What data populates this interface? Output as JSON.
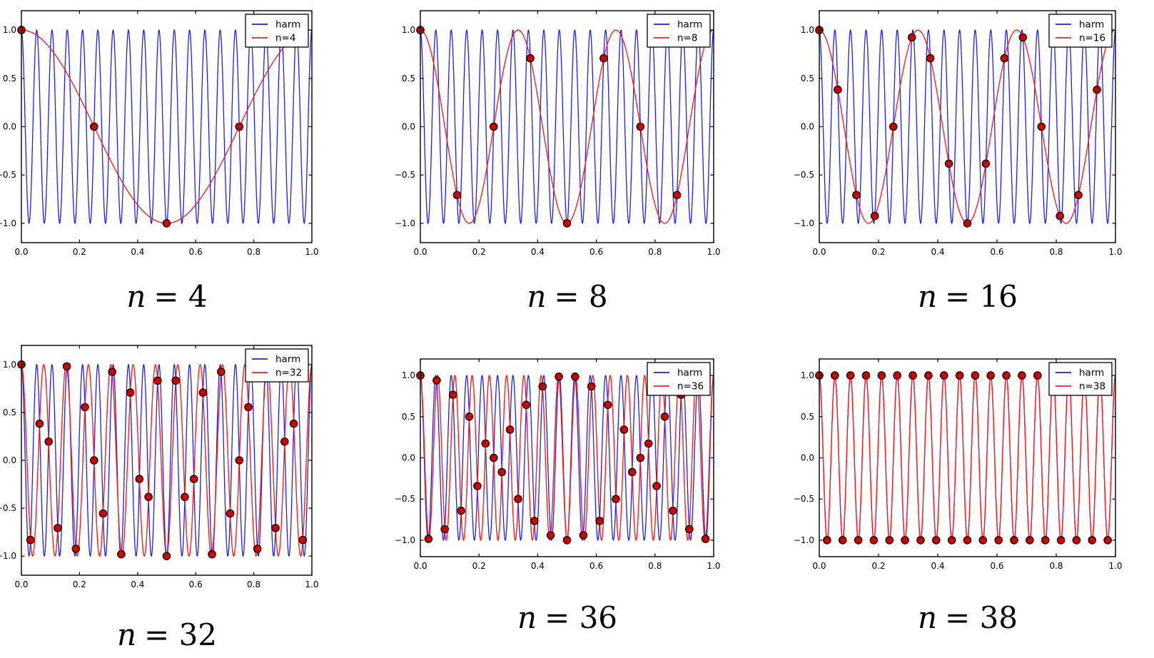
{
  "figure": {
    "background": "#ffffff",
    "colors": {
      "harm": "#2020dd",
      "alias": "#ee2222",
      "dot_fill": "#cc0000",
      "dot_edge": "#000000",
      "axis": "#000000",
      "legend_bg": "#ffffff",
      "text": "#000000"
    }
  },
  "axes": {
    "xlim": [
      0,
      1
    ],
    "ylim": [
      -1.2,
      1.2
    ],
    "grid": false,
    "legend_position": "upper right",
    "x_ticks": {
      "values": [
        0,
        0.2,
        0.4,
        0.6,
        0.8,
        1.0
      ],
      "labels": [
        "0.0",
        "0.2",
        "0.4",
        "0.6",
        "0.8",
        "1.0"
      ]
    },
    "y_ticks": {
      "values": [
        1.0,
        0.5,
        0.0,
        -0.5,
        -1.0
      ],
      "labels": [
        "1.0",
        "0.5",
        "0.0",
        "−0.5",
        "−1.0"
      ]
    },
    "xlabel": "",
    "ylabel": ""
  },
  "chart_data": [
    {
      "type": "line",
      "title": "n = 4",
      "caption": "n = 4",
      "caption_var": "n",
      "caption_eq": "= 4",
      "legend": [
        "harm",
        "n=4"
      ],
      "harm_frequency": 19,
      "alias_frequency": 1,
      "n_samples": 4,
      "samples": [
        [
          0,
          1
        ],
        [
          0.25,
          0
        ],
        [
          0.5,
          -1
        ],
        [
          0.75,
          0
        ]
      ]
    },
    {
      "type": "line",
      "title": "n = 8",
      "caption": "n = 8",
      "caption_var": "n",
      "caption_eq": "= 8",
      "legend": [
        "harm",
        "n=8"
      ],
      "harm_frequency": 19,
      "alias_frequency": 3,
      "n_samples": 8,
      "samples": [
        [
          0,
          1
        ],
        [
          0.125,
          -0.7071
        ],
        [
          0.25,
          0
        ],
        [
          0.375,
          0.7071
        ],
        [
          0.5,
          -1
        ],
        [
          0.625,
          0.7071
        ],
        [
          0.75,
          0
        ],
        [
          0.875,
          -0.7071
        ]
      ]
    },
    {
      "type": "line",
      "title": "n = 16",
      "caption": "n = 16",
      "caption_var": "n",
      "caption_eq": "= 16",
      "legend": [
        "harm",
        "n=16"
      ],
      "harm_frequency": 19,
      "alias_frequency": 3,
      "n_samples": 16,
      "samples": [
        [
          0,
          1
        ],
        [
          0.0625,
          0.3827
        ],
        [
          0.125,
          -0.7071
        ],
        [
          0.1875,
          -0.9239
        ],
        [
          0.25,
          0
        ],
        [
          0.3125,
          0.9239
        ],
        [
          0.375,
          0.7071
        ],
        [
          0.4375,
          -0.3827
        ],
        [
          0.5,
          -1
        ],
        [
          0.5625,
          -0.3827
        ],
        [
          0.625,
          0.7071
        ],
        [
          0.6875,
          0.9239
        ],
        [
          0.75,
          0
        ],
        [
          0.8125,
          -0.9239
        ],
        [
          0.875,
          -0.7071
        ],
        [
          0.9375,
          0.3827
        ]
      ]
    },
    {
      "type": "line",
      "title": "n = 32",
      "caption": "n = 32",
      "caption_var": "n",
      "caption_eq": "= 32",
      "legend": [
        "harm",
        "n=32"
      ],
      "harm_frequency": 19,
      "alias_frequency": 13,
      "n_samples": 32,
      "samples": [
        [
          0,
          1
        ],
        [
          0.03125,
          -0.8315
        ],
        [
          0.0625,
          0.3827
        ],
        [
          0.09375,
          0.1951
        ],
        [
          0.125,
          -0.7071
        ],
        [
          0.15625,
          0.9808
        ],
        [
          0.1875,
          -0.9239
        ],
        [
          0.21875,
          0.5556
        ],
        [
          0.25,
          0
        ],
        [
          0.28125,
          -0.5556
        ],
        [
          0.3125,
          0.9239
        ],
        [
          0.34375,
          -0.9808
        ],
        [
          0.375,
          0.7071
        ],
        [
          0.40625,
          -0.1951
        ],
        [
          0.4375,
          -0.3827
        ],
        [
          0.46875,
          0.8315
        ],
        [
          0.5,
          -1
        ],
        [
          0.53125,
          0.8315
        ],
        [
          0.5625,
          -0.3827
        ],
        [
          0.59375,
          -0.1951
        ],
        [
          0.625,
          0.7071
        ],
        [
          0.65625,
          -0.9808
        ],
        [
          0.6875,
          0.9239
        ],
        [
          0.71875,
          -0.5556
        ],
        [
          0.75,
          0
        ],
        [
          0.78125,
          0.5556
        ],
        [
          0.8125,
          -0.9239
        ],
        [
          0.84375,
          0.9808
        ],
        [
          0.875,
          -0.7071
        ],
        [
          0.90625,
          0.1951
        ],
        [
          0.9375,
          0.3827
        ],
        [
          0.96875,
          -0.8315
        ]
      ]
    },
    {
      "type": "line",
      "title": "n = 36",
      "caption": "n = 36",
      "caption_var": "n",
      "caption_eq": "= 36",
      "legend": [
        "harm",
        "n=36"
      ],
      "harm_frequency": 19,
      "alias_frequency": 17,
      "n_samples": 36,
      "samples": [
        [
          0,
          1
        ],
        [
          0.0278,
          -0.9848
        ],
        [
          0.0556,
          0.9397
        ],
        [
          0.0833,
          -0.866
        ],
        [
          0.1111,
          0.766
        ],
        [
          0.1389,
          -0.6428
        ],
        [
          0.1667,
          0.5
        ],
        [
          0.1944,
          -0.342
        ],
        [
          0.2222,
          0.1736
        ],
        [
          0.25,
          0
        ],
        [
          0.2778,
          -0.1736
        ],
        [
          0.3056,
          0.342
        ],
        [
          0.3333,
          -0.5
        ],
        [
          0.3611,
          0.6428
        ],
        [
          0.3889,
          -0.766
        ],
        [
          0.4167,
          0.866
        ],
        [
          0.4444,
          -0.9397
        ],
        [
          0.4722,
          0.9848
        ],
        [
          0.5,
          -1
        ],
        [
          0.5278,
          0.9848
        ],
        [
          0.5556,
          -0.9397
        ],
        [
          0.5833,
          0.866
        ],
        [
          0.6111,
          -0.766
        ],
        [
          0.6389,
          0.6428
        ],
        [
          0.6667,
          -0.5
        ],
        [
          0.6944,
          0.342
        ],
        [
          0.7222,
          -0.1736
        ],
        [
          0.75,
          0
        ],
        [
          0.7778,
          0.1736
        ],
        [
          0.8056,
          -0.342
        ],
        [
          0.8333,
          0.5
        ],
        [
          0.8611,
          -0.6428
        ],
        [
          0.8889,
          0.766
        ],
        [
          0.9167,
          -0.866
        ],
        [
          0.9444,
          0.9397
        ],
        [
          0.9722,
          -0.9848
        ]
      ]
    },
    {
      "type": "line",
      "title": "n = 38",
      "caption": "n = 38",
      "caption_var": "n",
      "caption_eq": "= 38",
      "legend": [
        "harm",
        "n=38"
      ],
      "harm_frequency": 19,
      "alias_frequency": 19,
      "n_samples": 38,
      "samples": [
        [
          0,
          1
        ],
        [
          0.0263,
          -1
        ],
        [
          0.0526,
          1
        ],
        [
          0.0789,
          -1
        ],
        [
          0.1053,
          1
        ],
        [
          0.1316,
          -1
        ],
        [
          0.1579,
          1
        ],
        [
          0.1842,
          -1
        ],
        [
          0.2105,
          1
        ],
        [
          0.2368,
          -1
        ],
        [
          0.2632,
          1
        ],
        [
          0.2895,
          -1
        ],
        [
          0.3158,
          1
        ],
        [
          0.3421,
          -1
        ],
        [
          0.3684,
          1
        ],
        [
          0.3947,
          -1
        ],
        [
          0.4211,
          1
        ],
        [
          0.4474,
          -1
        ],
        [
          0.4737,
          1
        ],
        [
          0.5,
          -1
        ],
        [
          0.5263,
          1
        ],
        [
          0.5526,
          -1
        ],
        [
          0.5789,
          1
        ],
        [
          0.6053,
          -1
        ],
        [
          0.6316,
          1
        ],
        [
          0.6579,
          -1
        ],
        [
          0.6842,
          1
        ],
        [
          0.7105,
          -1
        ],
        [
          0.7368,
          1
        ],
        [
          0.7632,
          -1
        ],
        [
          0.7895,
          1
        ],
        [
          0.8158,
          -1
        ],
        [
          0.8421,
          1
        ],
        [
          0.8684,
          -1
        ],
        [
          0.8947,
          1
        ],
        [
          0.9211,
          -1
        ],
        [
          0.9474,
          1
        ],
        [
          0.9737,
          -1
        ]
      ]
    }
  ]
}
